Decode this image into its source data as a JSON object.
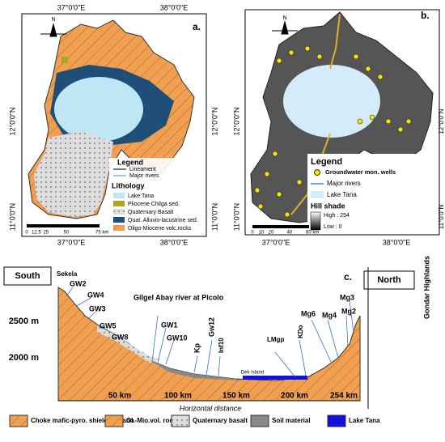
{
  "panel_a": {
    "label": "a.",
    "north": "N",
    "lon_top": [
      "37°0'0\"E",
      "38°0'0\"E"
    ],
    "lon_bottom": [
      "37°0'0\"E",
      "38°0'0\"E"
    ],
    "lat_left": [
      "12°0'0\"N",
      "11°0'0\"N"
    ],
    "lat_right": [
      "12°0'0\"N",
      "11°0'0\"N"
    ],
    "legend": {
      "title": "Legend",
      "items": [
        "Lineament",
        "Major rivers"
      ]
    },
    "lithology": {
      "title": "Lithology",
      "items": [
        "Lake Tana",
        "Pliocene Chilga sed.",
        "Quaternary Basalt",
        "Quat. Alluvio-lacustrine sed.",
        "Oligo-Miocene volc.rocks"
      ]
    },
    "scale": [
      "0",
      "12.5",
      "25",
      "50",
      "75 km"
    ]
  },
  "panel_b": {
    "label": "b.",
    "north": "N",
    "lon_bottom": [
      "37°0'0\"E",
      "38°0'0\"E"
    ],
    "lat_left": [
      "12°0'0\"N",
      "11°0'0\"N"
    ],
    "lat_right": [
      "12°0'0\"N",
      "11°0'0\"N"
    ],
    "legend": {
      "title": "Legend",
      "items": [
        "Groundwater mon. wells",
        "Major rivers",
        "Lake Tana"
      ]
    },
    "hillshade": {
      "title": "Hill shade",
      "high": "High : 254",
      "low": "Low : 0"
    },
    "scale": [
      "0",
      "10",
      "20",
      "40",
      "60 km"
    ]
  },
  "panel_c": {
    "label": "c.",
    "south": "South",
    "north": "North",
    "start": "Sekela",
    "end": "Gondar Highlands",
    "y_labels": [
      "2500 m",
      "2000 m"
    ],
    "x_labels": [
      "50 km",
      "100 km",
      "150 km",
      "200 km",
      "254 km"
    ],
    "x_title": "Horizontal distance",
    "wells": [
      "GW2",
      "GW4",
      "GW3",
      "GW5",
      "GW8",
      "Gilgel Abay river at Picolo",
      "GW1",
      "GW10",
      "Kp",
      "Gw12",
      "Inf10",
      "LMgp",
      "KDo",
      "Mg6",
      "Mg4",
      "Mg2",
      "Mg3"
    ],
    "island": "Dek Island",
    "legend": [
      "Choke mafic-pyro. shield volcano",
      "Ol.-Mio.vol. rocks",
      "Quaternary basalt",
      "Soil material",
      "Lake Tana"
    ]
  }
}
